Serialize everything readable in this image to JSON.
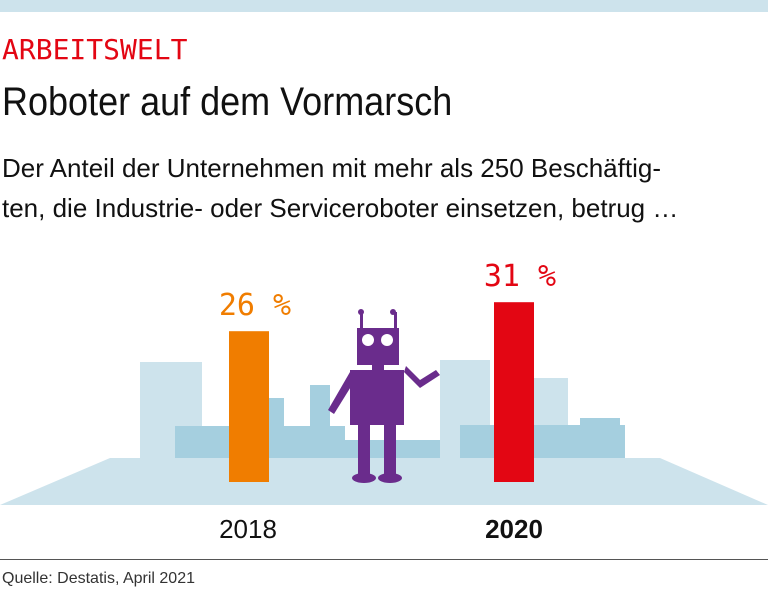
{
  "kicker": "ARBEITSWELT",
  "title": "Roboter auf dem Vormarsch",
  "subtitle_line1": "Der Anteil der Unternehmen mit mehr als 250 Beschäftig-",
  "subtitle_line2": "ten, die Industrie- oder Serviceroboter einsetzen, betrug …",
  "source": "Quelle: Destatis, April 2021",
  "chart_data": {
    "type": "bar",
    "categories": [
      "2018",
      "2020"
    ],
    "values": [
      26,
      31
    ],
    "data_labels": [
      "26 %",
      "31 %"
    ],
    "colors": [
      "#f07d00",
      "#e30613"
    ],
    "unit": "%"
  }
}
